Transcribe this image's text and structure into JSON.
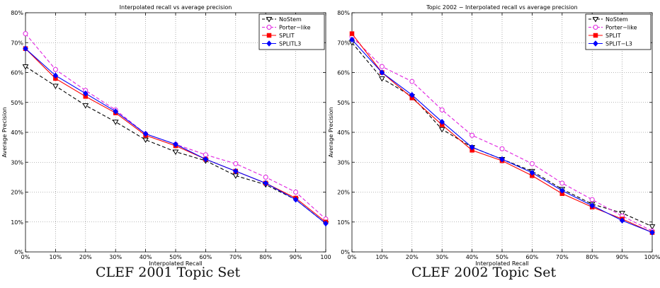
{
  "chart_data": [
    {
      "type": "line",
      "title": "Interpolated recall vs average precision",
      "caption": "CLEF 2001 Topic Set",
      "xlabel": "Interpolated Recall",
      "ylabel": "Average Precision",
      "xticks": [
        "0%",
        "10%",
        "20%",
        "30%",
        "40%",
        "50%",
        "60%",
        "70%",
        "80%",
        "90%",
        "100"
      ],
      "yticks": [
        "0%",
        "10%",
        "20%",
        "30%",
        "40%",
        "50%",
        "60%",
        "70%",
        "80%"
      ],
      "x": [
        0,
        10,
        20,
        30,
        40,
        50,
        60,
        70,
        80,
        90,
        100
      ],
      "xlim": [
        0,
        100
      ],
      "ylim": [
        0,
        80
      ],
      "grid": true,
      "legend_position": "top-right",
      "series": [
        {
          "name": "NoStem",
          "color": "#000000",
          "style": "dashed",
          "marker": "triangle-down",
          "values": [
            62,
            55.5,
            49,
            43.5,
            37.5,
            33.5,
            30.5,
            25.5,
            22.5,
            17.5,
            9.5
          ]
        },
        {
          "name": "Porter−like",
          "color": "#e020e0",
          "style": "dashed",
          "marker": "circle",
          "values": [
            73,
            61,
            54,
            47.5,
            39.5,
            36,
            32.5,
            29.5,
            25,
            20,
            11
          ]
        },
        {
          "name": "SPLIT",
          "color": "#ff0000",
          "style": "solid",
          "marker": "square",
          "values": [
            68,
            58,
            52,
            46.5,
            39,
            35.5,
            31,
            27,
            23,
            18,
            10
          ]
        },
        {
          "name": "SPLITL3",
          "color": "#0000ff",
          "style": "solid",
          "marker": "diamond",
          "values": [
            68,
            59,
            53,
            47,
            39.5,
            36,
            31,
            27,
            23,
            17.5,
            9.5
          ]
        }
      ]
    },
    {
      "type": "line",
      "title": "Topic 2002 − Interpolated recall vs average precision",
      "caption": "CLEF 2002 Topic Set",
      "xlabel": "Interpolated Recall",
      "ylabel": "Average Precision",
      "xticks": [
        "0%",
        "10%",
        "20%",
        "30%",
        "40%",
        "50%",
        "60%",
        "70%",
        "80%",
        "90%",
        "100%"
      ],
      "yticks": [
        "0%",
        "10%",
        "20%",
        "30%",
        "40%",
        "50%",
        "60%",
        "70%",
        "80%"
      ],
      "x": [
        0,
        10,
        20,
        30,
        40,
        50,
        60,
        70,
        80,
        90,
        100
      ],
      "xlim": [
        0,
        100
      ],
      "ylim": [
        0,
        80
      ],
      "grid": true,
      "legend_position": "top-right",
      "series": [
        {
          "name": "NoStem",
          "color": "#000000",
          "style": "dashed",
          "marker": "triangle-down",
          "values": [
            70,
            58,
            52,
            41,
            35,
            31,
            27,
            21,
            16,
            13,
            8.5
          ]
        },
        {
          "name": "Porter−like",
          "color": "#e020e0",
          "style": "dashed",
          "marker": "circle",
          "values": [
            72,
            62,
            57,
            47.5,
            39,
            34.5,
            29.5,
            23,
            17.5,
            12,
            7
          ]
        },
        {
          "name": "SPLIT",
          "color": "#ff0000",
          "style": "solid",
          "marker": "square",
          "values": [
            73,
            60,
            51.5,
            42.5,
            34,
            30.5,
            25.5,
            19.5,
            15,
            11,
            6.5
          ]
        },
        {
          "name": "SPLIT−L3",
          "color": "#0000ff",
          "style": "solid",
          "marker": "diamond",
          "values": [
            71,
            60,
            52.5,
            43.5,
            35,
            31,
            26.5,
            20.5,
            15.5,
            10.5,
            6.5
          ]
        }
      ]
    }
  ]
}
